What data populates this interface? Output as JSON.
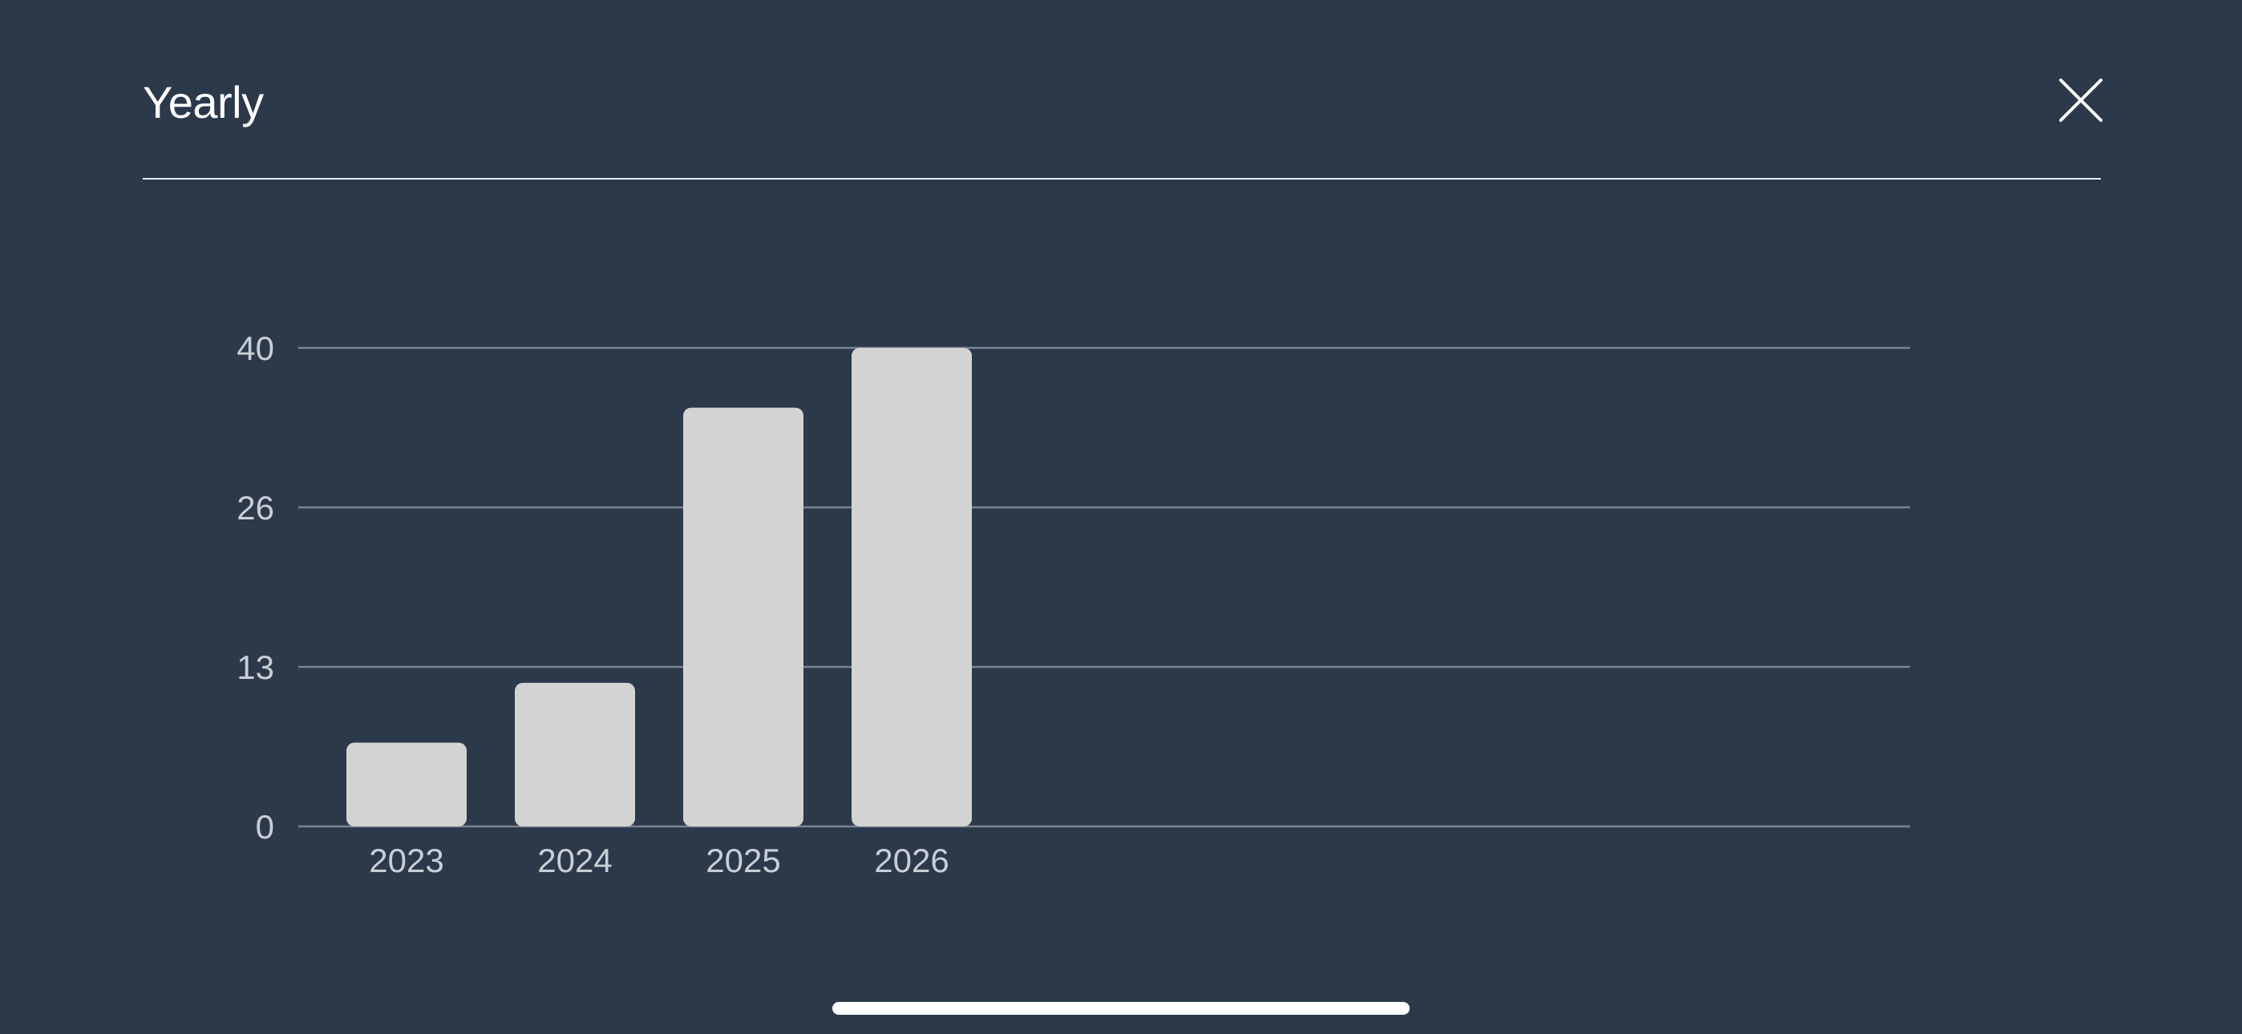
{
  "header": {
    "title": "Yearly",
    "close_icon": "close-icon"
  },
  "colors": {
    "background": "#2c394b",
    "bar": "#d3d3d3",
    "gridline": "#7a8391",
    "text": "#ffffff",
    "tick_text": "#c9ced6"
  },
  "chart_data": {
    "type": "bar",
    "title": "",
    "xlabel": "",
    "ylabel": "",
    "categories": [
      "2023",
      "2024",
      "2025",
      "2026"
    ],
    "values": [
      7,
      12,
      35,
      40
    ],
    "yticks": [
      "0",
      "13",
      "26",
      "40"
    ],
    "ylim": [
      0,
      40
    ],
    "grid": true,
    "legend": "none"
  }
}
